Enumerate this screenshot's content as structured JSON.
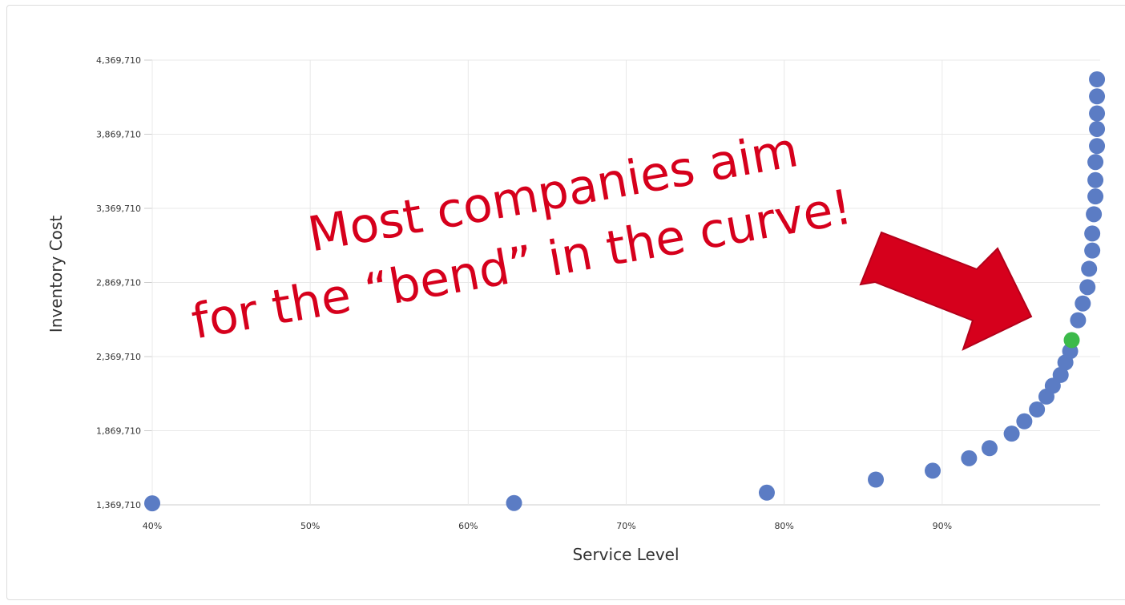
{
  "chart_data": {
    "type": "scatter",
    "xlabel": "Service Level",
    "ylabel": "Inventory Cost",
    "x_ticks": [
      "40%",
      "50%",
      "60%",
      "70%",
      "80%",
      "90%"
    ],
    "y_ticks": [
      "1,369,710",
      "1,869,710",
      "2,369,710",
      "2,869,710",
      "3,369,710",
      "3,869,710",
      "4,369,710"
    ],
    "xlim": [
      40,
      100
    ],
    "ylim": [
      1369710,
      4369710
    ],
    "grid": true,
    "highlight_color": "#3cba4a",
    "point_color": "#5b7cc4",
    "points": [
      {
        "x": 40.0,
        "y": 1380000
      },
      {
        "x": 62.9,
        "y": 1382000
      },
      {
        "x": 78.9,
        "y": 1452000
      },
      {
        "x": 85.8,
        "y": 1540000
      },
      {
        "x": 89.4,
        "y": 1600000
      },
      {
        "x": 91.7,
        "y": 1684000
      },
      {
        "x": 93.0,
        "y": 1752000
      },
      {
        "x": 94.4,
        "y": 1850000
      },
      {
        "x": 95.2,
        "y": 1933000
      },
      {
        "x": 96.0,
        "y": 2013000
      },
      {
        "x": 96.6,
        "y": 2100000
      },
      {
        "x": 97.0,
        "y": 2173000
      },
      {
        "x": 97.5,
        "y": 2246000
      },
      {
        "x": 97.8,
        "y": 2330000
      },
      {
        "x": 98.1,
        "y": 2406000
      },
      {
        "x": 98.2,
        "y": 2481000,
        "highlight": true
      },
      {
        "x": 98.6,
        "y": 2615000
      },
      {
        "x": 98.9,
        "y": 2728000
      },
      {
        "x": 99.2,
        "y": 2838000
      },
      {
        "x": 99.3,
        "y": 2962000
      },
      {
        "x": 99.5,
        "y": 3085000
      },
      {
        "x": 99.5,
        "y": 3200000
      },
      {
        "x": 99.6,
        "y": 3330000
      },
      {
        "x": 99.7,
        "y": 3450000
      },
      {
        "x": 99.7,
        "y": 3560000
      },
      {
        "x": 99.7,
        "y": 3682000
      },
      {
        "x": 99.8,
        "y": 3790000
      },
      {
        "x": 99.8,
        "y": 3905000
      },
      {
        "x": 99.8,
        "y": 4010000
      },
      {
        "x": 99.8,
        "y": 4125000
      },
      {
        "x": 99.8,
        "y": 4240000
      }
    ]
  },
  "annotation": {
    "line1": "Most companies aim",
    "line2": "for the “bend” in the curve!",
    "color": "#d6001c"
  }
}
